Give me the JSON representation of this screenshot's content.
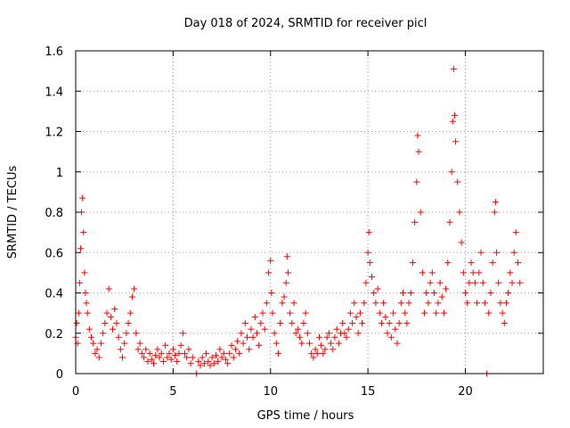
{
  "chart_data": {
    "type": "scatter",
    "title": "Day 018 of 2024, SRMTID for receiver picl",
    "xlabel": "GPS time / hours",
    "ylabel": "SRMTID / TECUs",
    "xlim": [
      0,
      24
    ],
    "ylim": [
      0,
      1.6
    ],
    "xticks": [
      0,
      5,
      10,
      15,
      20
    ],
    "xtick_labels": [
      "0",
      "5",
      "10",
      "15",
      "20"
    ],
    "yticks": [
      0,
      0.2,
      0.4,
      0.6,
      0.8,
      1.0,
      1.2,
      1.4,
      1.6
    ],
    "ytick_labels": [
      "0",
      "0.2",
      "0.4",
      "0.6",
      "0.8",
      "1",
      "1.2",
      "1.4",
      "1.6"
    ],
    "grid": true,
    "marker": "plus",
    "color": "#ff0000",
    "series": [
      {
        "name": "SRMTID",
        "points": [
          [
            0.0,
            0.18
          ],
          [
            0.05,
            0.25
          ],
          [
            0.1,
            0.15
          ],
          [
            0.15,
            0.3
          ],
          [
            0.2,
            0.45
          ],
          [
            0.25,
            0.62
          ],
          [
            0.3,
            0.8
          ],
          [
            0.35,
            0.87
          ],
          [
            0.4,
            0.7
          ],
          [
            0.45,
            0.5
          ],
          [
            0.5,
            0.4
          ],
          [
            0.55,
            0.35
          ],
          [
            0.6,
            0.3
          ],
          [
            0.7,
            0.22
          ],
          [
            0.8,
            0.18
          ],
          [
            0.9,
            0.15
          ],
          [
            1.0,
            0.1
          ],
          [
            1.1,
            0.12
          ],
          [
            1.2,
            0.08
          ],
          [
            1.3,
            0.15
          ],
          [
            1.4,
            0.2
          ],
          [
            1.5,
            0.25
          ],
          [
            1.6,
            0.3
          ],
          [
            1.7,
            0.42
          ],
          [
            1.8,
            0.28
          ],
          [
            1.9,
            0.22
          ],
          [
            2.0,
            0.32
          ],
          [
            2.1,
            0.25
          ],
          [
            2.2,
            0.18
          ],
          [
            2.3,
            0.12
          ],
          [
            2.4,
            0.08
          ],
          [
            2.5,
            0.15
          ],
          [
            2.6,
            0.2
          ],
          [
            2.7,
            0.25
          ],
          [
            2.8,
            0.3
          ],
          [
            2.9,
            0.38
          ],
          [
            3.0,
            0.42
          ],
          [
            3.1,
            0.2
          ],
          [
            3.2,
            0.12
          ],
          [
            3.3,
            0.15
          ],
          [
            3.4,
            0.1
          ],
          [
            3.5,
            0.08
          ],
          [
            3.6,
            0.12
          ],
          [
            3.7,
            0.06
          ],
          [
            3.8,
            0.1
          ],
          [
            3.9,
            0.07
          ],
          [
            4.0,
            0.05
          ],
          [
            4.1,
            0.09
          ],
          [
            4.2,
            0.12
          ],
          [
            4.3,
            0.08
          ],
          [
            4.4,
            0.1
          ],
          [
            4.5,
            0.06
          ],
          [
            4.6,
            0.14
          ],
          [
            4.7,
            0.08
          ],
          [
            4.8,
            0.1
          ],
          [
            4.9,
            0.07
          ],
          [
            5.0,
            0.12
          ],
          [
            5.1,
            0.09
          ],
          [
            5.2,
            0.06
          ],
          [
            5.3,
            0.1
          ],
          [
            5.4,
            0.14
          ],
          [
            5.5,
            0.2
          ],
          [
            5.6,
            0.1
          ],
          [
            5.7,
            0.08
          ],
          [
            5.8,
            0.12
          ],
          [
            5.9,
            0.05
          ],
          [
            6.0,
            0.08
          ],
          [
            6.2,
            0.0
          ],
          [
            6.3,
            0.06
          ],
          [
            6.4,
            0.04
          ],
          [
            6.5,
            0.08
          ],
          [
            6.6,
            0.05
          ],
          [
            6.7,
            0.1
          ],
          [
            6.8,
            0.06
          ],
          [
            6.9,
            0.04
          ],
          [
            7.0,
            0.08
          ],
          [
            7.1,
            0.05
          ],
          [
            7.2,
            0.09
          ],
          [
            7.3,
            0.06
          ],
          [
            7.4,
            0.12
          ],
          [
            7.5,
            0.08
          ],
          [
            7.6,
            0.1
          ],
          [
            7.7,
            0.07
          ],
          [
            7.8,
            0.05
          ],
          [
            7.9,
            0.1
          ],
          [
            8.0,
            0.14
          ],
          [
            8.1,
            0.08
          ],
          [
            8.2,
            0.12
          ],
          [
            8.3,
            0.16
          ],
          [
            8.4,
            0.1
          ],
          [
            8.5,
            0.2
          ],
          [
            8.6,
            0.15
          ],
          [
            8.7,
            0.25
          ],
          [
            8.8,
            0.18
          ],
          [
            8.9,
            0.12
          ],
          [
            9.0,
            0.22
          ],
          [
            9.1,
            0.18
          ],
          [
            9.2,
            0.28
          ],
          [
            9.3,
            0.2
          ],
          [
            9.4,
            0.14
          ],
          [
            9.5,
            0.25
          ],
          [
            9.6,
            0.3
          ],
          [
            9.7,
            0.22
          ],
          [
            9.8,
            0.35
          ],
          [
            9.9,
            0.5
          ],
          [
            10.0,
            0.56
          ],
          [
            10.05,
            0.4
          ],
          [
            10.1,
            0.3
          ],
          [
            10.2,
            0.2
          ],
          [
            10.3,
            0.15
          ],
          [
            10.4,
            0.1
          ],
          [
            10.5,
            0.25
          ],
          [
            10.6,
            0.35
          ],
          [
            10.7,
            0.38
          ],
          [
            10.8,
            0.45
          ],
          [
            10.85,
            0.58
          ],
          [
            10.9,
            0.5
          ],
          [
            11.0,
            0.3
          ],
          [
            11.1,
            0.25
          ],
          [
            11.2,
            0.35
          ],
          [
            11.3,
            0.2
          ],
          [
            11.4,
            0.22
          ],
          [
            11.5,
            0.18
          ],
          [
            11.6,
            0.15
          ],
          [
            11.7,
            0.25
          ],
          [
            11.8,
            0.3
          ],
          [
            11.9,
            0.2
          ],
          [
            12.0,
            0.15
          ],
          [
            12.1,
            0.1
          ],
          [
            12.2,
            0.08
          ],
          [
            12.3,
            0.12
          ],
          [
            12.4,
            0.1
          ],
          [
            12.5,
            0.18
          ],
          [
            12.6,
            0.14
          ],
          [
            12.7,
            0.1
          ],
          [
            12.8,
            0.12
          ],
          [
            12.9,
            0.18
          ],
          [
            13.0,
            0.2
          ],
          [
            13.1,
            0.15
          ],
          [
            13.2,
            0.12
          ],
          [
            13.3,
            0.18
          ],
          [
            13.4,
            0.22
          ],
          [
            13.5,
            0.15
          ],
          [
            13.6,
            0.2
          ],
          [
            13.7,
            0.25
          ],
          [
            13.8,
            0.2
          ],
          [
            13.9,
            0.18
          ],
          [
            14.0,
            0.22
          ],
          [
            14.1,
            0.3
          ],
          [
            14.2,
            0.25
          ],
          [
            14.3,
            0.35
          ],
          [
            14.4,
            0.28
          ],
          [
            14.5,
            0.2
          ],
          [
            14.6,
            0.3
          ],
          [
            14.7,
            0.25
          ],
          [
            14.8,
            0.35
          ],
          [
            14.9,
            0.45
          ],
          [
            15.0,
            0.6
          ],
          [
            15.05,
            0.7
          ],
          [
            15.1,
            0.55
          ],
          [
            15.2,
            0.48
          ],
          [
            15.3,
            0.4
          ],
          [
            15.4,
            0.35
          ],
          [
            15.5,
            0.42
          ],
          [
            15.6,
            0.3
          ],
          [
            15.7,
            0.25
          ],
          [
            15.8,
            0.35
          ],
          [
            15.9,
            0.28
          ],
          [
            16.0,
            0.2
          ],
          [
            16.1,
            0.25
          ],
          [
            16.2,
            0.18
          ],
          [
            16.3,
            0.3
          ],
          [
            16.4,
            0.22
          ],
          [
            16.5,
            0.15
          ],
          [
            16.6,
            0.25
          ],
          [
            16.7,
            0.35
          ],
          [
            16.8,
            0.4
          ],
          [
            16.9,
            0.3
          ],
          [
            17.0,
            0.25
          ],
          [
            17.1,
            0.35
          ],
          [
            17.2,
            0.4
          ],
          [
            17.3,
            0.55
          ],
          [
            17.4,
            0.75
          ],
          [
            17.5,
            0.95
          ],
          [
            17.55,
            1.18
          ],
          [
            17.6,
            1.1
          ],
          [
            17.7,
            0.8
          ],
          [
            17.8,
            0.5
          ],
          [
            17.9,
            0.3
          ],
          [
            18.0,
            0.4
          ],
          [
            18.1,
            0.35
          ],
          [
            18.2,
            0.45
          ],
          [
            18.3,
            0.5
          ],
          [
            18.4,
            0.4
          ],
          [
            18.5,
            0.3
          ],
          [
            18.6,
            0.35
          ],
          [
            18.7,
            0.45
          ],
          [
            18.8,
            0.38
          ],
          [
            18.9,
            0.3
          ],
          [
            19.0,
            0.42
          ],
          [
            19.1,
            0.55
          ],
          [
            19.2,
            0.75
          ],
          [
            19.3,
            1.0
          ],
          [
            19.35,
            1.25
          ],
          [
            19.4,
            1.51
          ],
          [
            19.45,
            1.28
          ],
          [
            19.5,
            1.15
          ],
          [
            19.6,
            0.95
          ],
          [
            19.7,
            0.8
          ],
          [
            19.8,
            0.65
          ],
          [
            19.9,
            0.5
          ],
          [
            20.0,
            0.4
          ],
          [
            20.1,
            0.35
          ],
          [
            20.2,
            0.45
          ],
          [
            20.3,
            0.55
          ],
          [
            20.4,
            0.5
          ],
          [
            20.5,
            0.45
          ],
          [
            20.6,
            0.35
          ],
          [
            20.7,
            0.5
          ],
          [
            20.8,
            0.6
          ],
          [
            20.9,
            0.45
          ],
          [
            21.0,
            0.35
          ],
          [
            21.1,
            0.0
          ],
          [
            21.2,
            0.3
          ],
          [
            21.3,
            0.4
          ],
          [
            21.4,
            0.55
          ],
          [
            21.5,
            0.8
          ],
          [
            21.55,
            0.85
          ],
          [
            21.6,
            0.6
          ],
          [
            21.7,
            0.45
          ],
          [
            21.8,
            0.35
          ],
          [
            21.9,
            0.3
          ],
          [
            22.0,
            0.25
          ],
          [
            22.1,
            0.35
          ],
          [
            22.2,
            0.4
          ],
          [
            22.3,
            0.5
          ],
          [
            22.4,
            0.45
          ],
          [
            22.5,
            0.6
          ],
          [
            22.6,
            0.7
          ],
          [
            22.7,
            0.55
          ],
          [
            22.8,
            0.45
          ]
        ]
      }
    ]
  }
}
